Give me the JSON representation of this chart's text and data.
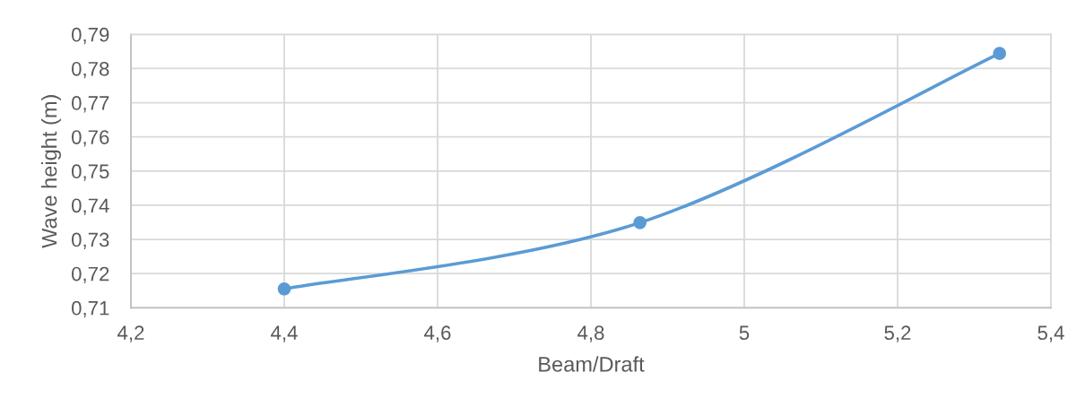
{
  "chart_data": {
    "type": "line",
    "xlabel": "Beam/Draft",
    "ylabel": "Wave height (m)",
    "x": [
      4.4,
      4.864,
      5.333
    ],
    "series": [
      {
        "color": "#5b9bd5",
        "values": [
          0.7155,
          0.7349,
          0.7844
        ]
      }
    ],
    "xlim": [
      4.2,
      5.4
    ],
    "ylim": [
      0.71,
      0.79
    ],
    "xticks": [
      {
        "value": 4.2,
        "label": "4,2"
      },
      {
        "value": 4.4,
        "label": "4,4"
      },
      {
        "value": 4.6,
        "label": "4,6"
      },
      {
        "value": 4.8,
        "label": "4,8"
      },
      {
        "value": 5,
        "label": "5"
      },
      {
        "value": 5.2,
        "label": "5,2"
      },
      {
        "value": 5.4,
        "label": "5,4"
      }
    ],
    "yticks": [
      {
        "value": 0.71,
        "label": "0,71"
      },
      {
        "value": 0.72,
        "label": "0,72"
      },
      {
        "value": 0.73,
        "label": "0,73"
      },
      {
        "value": 0.74,
        "label": "0,74"
      },
      {
        "value": 0.75,
        "label": "0,75"
      },
      {
        "value": 0.76,
        "label": "0,76"
      },
      {
        "value": 0.77,
        "label": "0,77"
      },
      {
        "value": 0.78,
        "label": "0,78"
      },
      {
        "value": 0.79,
        "label": "0,79"
      }
    ],
    "grid": true,
    "marker": "circle",
    "line_style": "solid"
  }
}
